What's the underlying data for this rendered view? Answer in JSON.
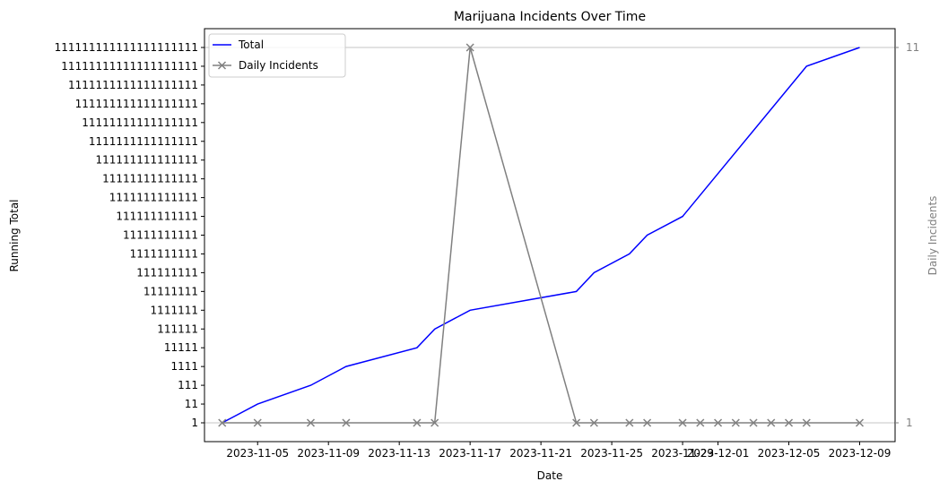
{
  "colors": {
    "total": "#0000ff",
    "daily": "#808080",
    "grid": "#b0b0b0",
    "axis": "#000000"
  },
  "chart_data": {
    "type": "line",
    "title": "Marijuana Incidents Over Time",
    "xlabel": "Date",
    "ylabel_left": "Running Total",
    "ylabel_right": "Daily Incidents",
    "x_ticks": [
      "2023-11-05",
      "2023-11-09",
      "2023-11-13",
      "2023-11-17",
      "2023-11-21",
      "2023-11-25",
      "2023-11-29",
      "2023-12-01",
      "2023-12-05",
      "2023-12-09"
    ],
    "x_range": [
      "2023-11-02",
      "2023-12-11"
    ],
    "y_left_ticks": [
      "1",
      "11",
      "111",
      "1111",
      "11111",
      "111111",
      "1111111",
      "11111111",
      "111111111",
      "1111111111",
      "11111111111",
      "111111111111",
      "1111111111111",
      "11111111111111",
      "111111111111111",
      "1111111111111111",
      "11111111111111111",
      "111111111111111111",
      "1111111111111111111",
      "11111111111111111111",
      "111111111111111111111"
    ],
    "y_right_ticks": [
      "1",
      "11"
    ],
    "legend_placement": "top-left",
    "grid": "right-axis horizontal lines",
    "series": [
      {
        "name": "Total",
        "axis": "left",
        "color": "#0000ff",
        "marker": "none",
        "x": [
          "2023-11-03",
          "2023-11-05",
          "2023-11-08",
          "2023-11-10",
          "2023-11-14",
          "2023-11-15",
          "2023-11-17",
          "2023-11-23",
          "2023-11-24",
          "2023-11-26",
          "2023-11-27",
          "2023-11-29",
          "2023-12-06",
          "2023-12-09"
        ],
        "y_rank": [
          0,
          1,
          2,
          3,
          4,
          5,
          6,
          7,
          8,
          9,
          10,
          11,
          19,
          20
        ]
      },
      {
        "name": "Daily Incidents",
        "axis": "right",
        "color": "#808080",
        "marker": "x",
        "x": [
          "2023-11-03",
          "2023-11-05",
          "2023-11-08",
          "2023-11-10",
          "2023-11-14",
          "2023-11-15",
          "2023-11-17",
          "2023-11-23",
          "2023-11-24",
          "2023-11-26",
          "2023-11-27",
          "2023-11-29",
          "2023-11-30",
          "2023-12-01",
          "2023-12-02",
          "2023-12-03",
          "2023-12-04",
          "2023-12-05",
          "2023-12-06",
          "2023-12-09"
        ],
        "y": [
          "1",
          "1",
          "1",
          "1",
          "1",
          "1",
          "11",
          "1",
          "1",
          "1",
          "1",
          "1",
          "1",
          "1",
          "1",
          "1",
          "1",
          "1",
          "1",
          "1"
        ]
      }
    ]
  }
}
